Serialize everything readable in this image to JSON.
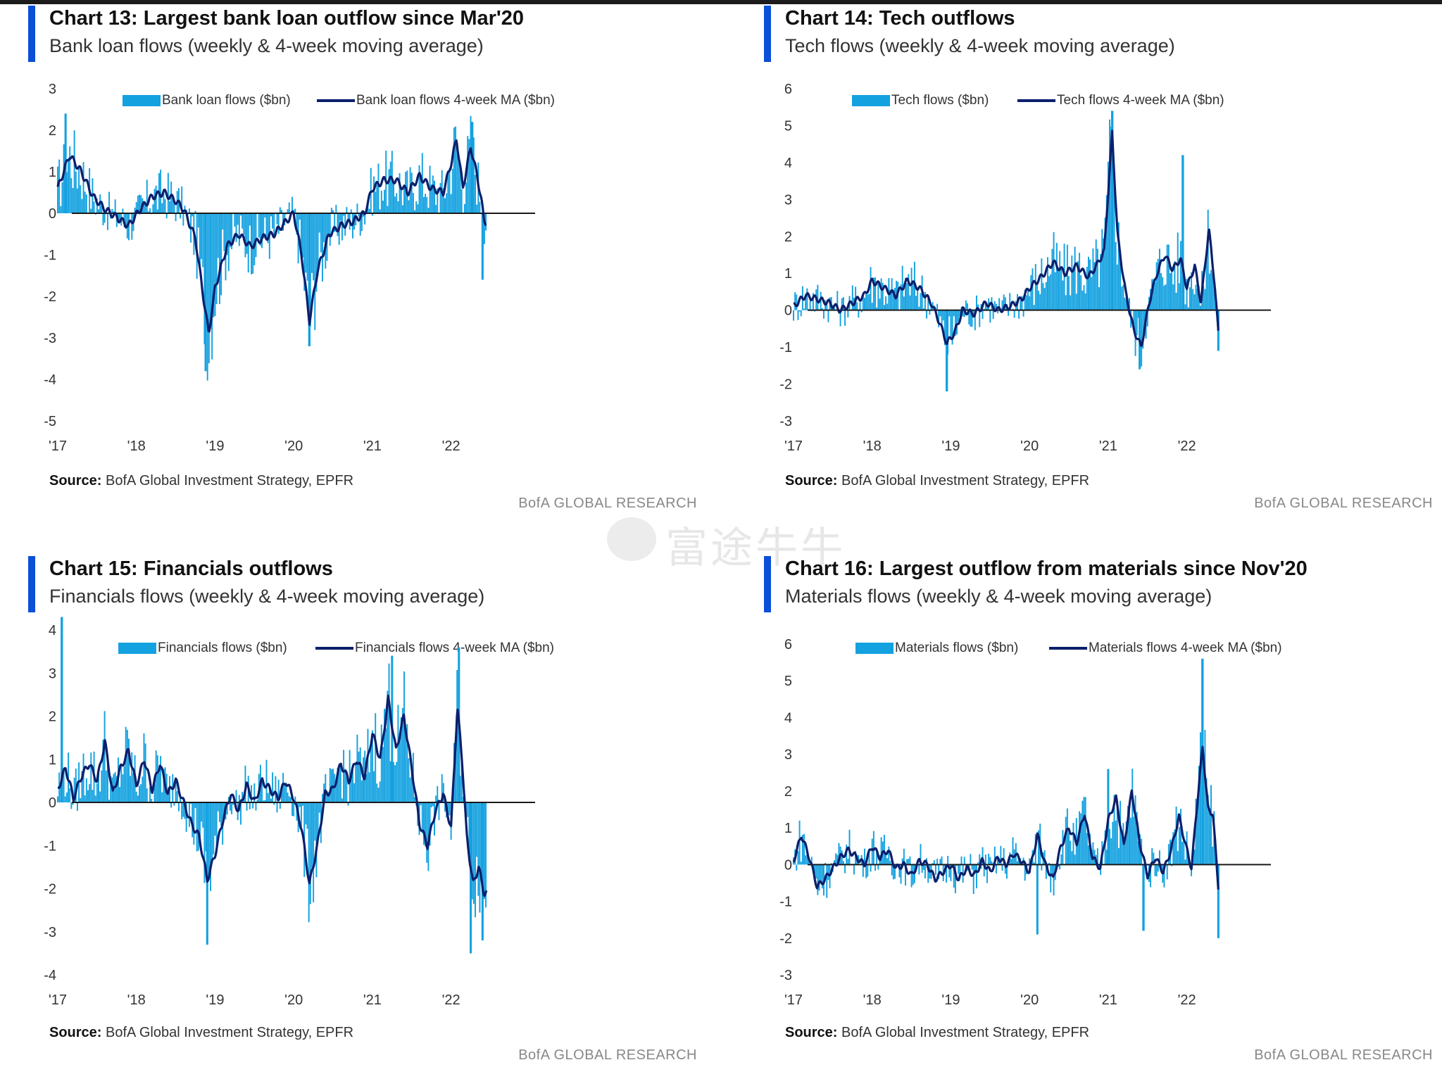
{
  "colors": {
    "bar": "#13a1e0",
    "ma": "#0b1f6b",
    "accent": "#0b4fd9",
    "zero": "#1a1a1a"
  },
  "watermark": "富途牛牛",
  "panels": [
    {
      "title": "Chart 13: Largest bank loan outflow since Mar'20",
      "subtitle": "Bank loan flows (weekly & 4-week moving average)",
      "source_label": "Source:",
      "source_text": "BofA Global Investment Strategy, EPFR",
      "brand": "BofA GLOBAL RESEARCH",
      "legend": {
        "bar": "Bank loan flows ($bn)",
        "line": "Bank loan flows 4-week MA ($bn)"
      },
      "chart_data": {
        "type": "bar",
        "x_start": 2017.0,
        "x_end": 2022.45,
        "xticks": [
          "'17",
          "'18",
          "'19",
          "'20",
          "'21",
          "'22"
        ],
        "yticks": [
          "3",
          "2",
          "1",
          "0",
          "-1",
          "-2",
          "-3",
          "-4",
          "-5"
        ],
        "ylim": [
          -5,
          3
        ],
        "ma_points": [
          [
            2017.0,
            0.6
          ],
          [
            2017.15,
            1.4
          ],
          [
            2017.3,
            1.0
          ],
          [
            2017.45,
            0.4
          ],
          [
            2017.6,
            0.1
          ],
          [
            2017.75,
            -0.1
          ],
          [
            2017.9,
            -0.3
          ],
          [
            2018.05,
            0.1
          ],
          [
            2018.2,
            0.4
          ],
          [
            2018.35,
            0.5
          ],
          [
            2018.5,
            0.3
          ],
          [
            2018.6,
            0.1
          ],
          [
            2018.75,
            -0.6
          ],
          [
            2018.85,
            -2.0
          ],
          [
            2018.92,
            -2.9
          ],
          [
            2019.0,
            -1.8
          ],
          [
            2019.15,
            -0.8
          ],
          [
            2019.3,
            -0.5
          ],
          [
            2019.45,
            -0.8
          ],
          [
            2019.6,
            -0.6
          ],
          [
            2019.75,
            -0.5
          ],
          [
            2019.9,
            -0.2
          ],
          [
            2020.0,
            0.0
          ],
          [
            2020.1,
            -1.0
          ],
          [
            2020.2,
            -2.6
          ],
          [
            2020.3,
            -1.4
          ],
          [
            2020.45,
            -0.5
          ],
          [
            2020.6,
            -0.3
          ],
          [
            2020.75,
            -0.2
          ],
          [
            2020.9,
            0.0
          ],
          [
            2021.0,
            0.6
          ],
          [
            2021.15,
            0.8
          ],
          [
            2021.3,
            0.8
          ],
          [
            2021.45,
            0.5
          ],
          [
            2021.6,
            0.9
          ],
          [
            2021.75,
            0.6
          ],
          [
            2021.9,
            0.5
          ],
          [
            2022.0,
            1.2
          ],
          [
            2022.07,
            1.8
          ],
          [
            2022.15,
            0.6
          ],
          [
            2022.25,
            1.6
          ],
          [
            2022.32,
            1.0
          ],
          [
            2022.38,
            0.4
          ],
          [
            2022.42,
            -0.2
          ]
        ],
        "bar_extremes": [
          [
            2017.1,
            2.4
          ],
          [
            2018.88,
            -3.8
          ],
          [
            2020.2,
            -3.2
          ],
          [
            2022.27,
            2.2
          ],
          [
            2022.4,
            -1.6
          ]
        ]
      }
    },
    {
      "title": "Chart 14: Tech outflows",
      "subtitle": "Tech flows (weekly & 4-week moving average)",
      "source_label": "Source:",
      "source_text": "BofA Global Investment Strategy, EPFR",
      "brand": "BofA GLOBAL RESEARCH",
      "legend": {
        "bar": "Tech flows ($bn)",
        "line": "Tech flows 4-week MA ($bn)"
      },
      "chart_data": {
        "type": "bar",
        "x_start": 2017.0,
        "x_end": 2022.4,
        "xticks": [
          "'17",
          "'18",
          "'19",
          "'20",
          "'21",
          "'22"
        ],
        "yticks": [
          "6",
          "5",
          "4",
          "3",
          "2",
          "1",
          "0",
          "-1",
          "-2",
          "-3"
        ],
        "ylim": [
          -3,
          6
        ],
        "ma_points": [
          [
            2017.0,
            0.1
          ],
          [
            2017.15,
            0.4
          ],
          [
            2017.3,
            0.3
          ],
          [
            2017.45,
            0.2
          ],
          [
            2017.6,
            0.0
          ],
          [
            2017.75,
            0.2
          ],
          [
            2017.9,
            0.4
          ],
          [
            2018.0,
            0.8
          ],
          [
            2018.15,
            0.6
          ],
          [
            2018.3,
            0.4
          ],
          [
            2018.45,
            0.8
          ],
          [
            2018.6,
            0.6
          ],
          [
            2018.75,
            0.2
          ],
          [
            2018.85,
            -0.3
          ],
          [
            2018.95,
            -0.9
          ],
          [
            2019.05,
            -0.6
          ],
          [
            2019.15,
            0.0
          ],
          [
            2019.3,
            -0.1
          ],
          [
            2019.45,
            0.2
          ],
          [
            2019.6,
            0.0
          ],
          [
            2019.75,
            0.1
          ],
          [
            2019.9,
            0.3
          ],
          [
            2020.0,
            0.6
          ],
          [
            2020.15,
            0.9
          ],
          [
            2020.3,
            1.3
          ],
          [
            2020.45,
            1.0
          ],
          [
            2020.6,
            1.2
          ],
          [
            2020.75,
            0.9
          ],
          [
            2020.85,
            1.2
          ],
          [
            2020.95,
            1.6
          ],
          [
            2021.05,
            4.8
          ],
          [
            2021.12,
            2.0
          ],
          [
            2021.22,
            0.5
          ],
          [
            2021.32,
            -0.5
          ],
          [
            2021.42,
            -1.0
          ],
          [
            2021.52,
            0.2
          ],
          [
            2021.62,
            1.0
          ],
          [
            2021.72,
            1.5
          ],
          [
            2021.82,
            1.1
          ],
          [
            2021.92,
            1.4
          ],
          [
            2022.0,
            0.6
          ],
          [
            2022.1,
            1.2
          ],
          [
            2022.18,
            0.2
          ],
          [
            2022.28,
            2.2
          ],
          [
            2022.35,
            0.8
          ],
          [
            2022.4,
            -0.6
          ]
        ],
        "bar_extremes": [
          [
            2021.05,
            5.4
          ],
          [
            2021.95,
            4.2
          ],
          [
            2018.95,
            -2.2
          ],
          [
            2021.4,
            -1.6
          ],
          [
            2022.4,
            -1.1
          ]
        ]
      }
    },
    {
      "title": "Chart 15: Financials outflows",
      "subtitle": "Financials flows (weekly & 4-week moving average)",
      "source_label": "Source:",
      "source_text": "BofA Global Investment Strategy, EPFR",
      "brand": "BofA GLOBAL RESEARCH",
      "legend": {
        "bar": "Financials flows ($bn)",
        "line": "Financials flows 4-week MA ($bn)"
      },
      "chart_data": {
        "type": "bar",
        "x_start": 2017.0,
        "x_end": 2022.45,
        "xticks": [
          "'17",
          "'18",
          "'19",
          "'20",
          "'21",
          "'22"
        ],
        "yticks": [
          "4",
          "3",
          "2",
          "1",
          "0",
          "-1",
          "-2",
          "-3",
          "-4"
        ],
        "ylim": [
          -4,
          4
        ],
        "ma_points": [
          [
            2017.0,
            0.3
          ],
          [
            2017.1,
            0.8
          ],
          [
            2017.2,
            0.1
          ],
          [
            2017.3,
            0.6
          ],
          [
            2017.4,
            0.9
          ],
          [
            2017.5,
            0.5
          ],
          [
            2017.6,
            1.4
          ],
          [
            2017.7,
            0.2
          ],
          [
            2017.8,
            0.8
          ],
          [
            2017.9,
            1.2
          ],
          [
            2018.0,
            0.4
          ],
          [
            2018.1,
            1.0
          ],
          [
            2018.2,
            0.3
          ],
          [
            2018.3,
            0.9
          ],
          [
            2018.4,
            0.2
          ],
          [
            2018.5,
            0.5
          ],
          [
            2018.6,
            0.0
          ],
          [
            2018.7,
            -0.5
          ],
          [
            2018.8,
            -0.8
          ],
          [
            2018.9,
            -1.8
          ],
          [
            2019.0,
            -1.2
          ],
          [
            2019.1,
            -0.4
          ],
          [
            2019.2,
            0.2
          ],
          [
            2019.3,
            -0.2
          ],
          [
            2019.4,
            0.4
          ],
          [
            2019.5,
            0.0
          ],
          [
            2019.6,
            0.5
          ],
          [
            2019.7,
            0.3
          ],
          [
            2019.8,
            0.1
          ],
          [
            2019.9,
            0.5
          ],
          [
            2020.0,
            0.1
          ],
          [
            2020.1,
            -0.6
          ],
          [
            2020.2,
            -1.9
          ],
          [
            2020.3,
            -1.0
          ],
          [
            2020.4,
            0.2
          ],
          [
            2020.5,
            0.3
          ],
          [
            2020.6,
            0.9
          ],
          [
            2020.7,
            0.5
          ],
          [
            2020.8,
            1.0
          ],
          [
            2020.9,
            0.6
          ],
          [
            2021.0,
            1.6
          ],
          [
            2021.1,
            1.0
          ],
          [
            2021.2,
            2.4
          ],
          [
            2021.3,
            1.2
          ],
          [
            2021.4,
            2.0
          ],
          [
            2021.5,
            0.8
          ],
          [
            2021.6,
            -0.5
          ],
          [
            2021.7,
            -1.0
          ],
          [
            2021.8,
            -0.2
          ],
          [
            2021.9,
            0.2
          ],
          [
            2022.0,
            -0.6
          ],
          [
            2022.08,
            2.2
          ],
          [
            2022.14,
            1.0
          ],
          [
            2022.2,
            -0.8
          ],
          [
            2022.28,
            -1.9
          ],
          [
            2022.35,
            -1.5
          ],
          [
            2022.42,
            -2.1
          ]
        ],
        "bar_extremes": [
          [
            2017.05,
            4.3
          ],
          [
            2021.25,
            3.4
          ],
          [
            2022.1,
            3.6
          ],
          [
            2018.9,
            -3.3
          ],
          [
            2022.25,
            -3.5
          ],
          [
            2022.4,
            -3.2
          ]
        ]
      }
    },
    {
      "title": "Chart 16: Largest outflow from materials since Nov'20",
      "subtitle": "Materials flows (weekly & 4-week moving average)",
      "source_label": "Source:",
      "source_text": "BofA Global Investment Strategy, EPFR",
      "brand": "BofA GLOBAL RESEARCH",
      "legend": {
        "bar": "Materials flows ($bn)",
        "line": "Materials flows 4-week MA ($bn)"
      },
      "chart_data": {
        "type": "bar",
        "x_start": 2017.0,
        "x_end": 2022.4,
        "xticks": [
          "'17",
          "'18",
          "'19",
          "'20",
          "'21",
          "'22"
        ],
        "yticks": [
          "6",
          "5",
          "4",
          "3",
          "2",
          "1",
          "0",
          "-1",
          "-2",
          "-3"
        ],
        "ylim": [
          -3,
          6
        ],
        "ma_points": [
          [
            2017.0,
            0.1
          ],
          [
            2017.1,
            0.8
          ],
          [
            2017.2,
            0.2
          ],
          [
            2017.3,
            -0.6
          ],
          [
            2017.4,
            -0.4
          ],
          [
            2017.5,
            -0.1
          ],
          [
            2017.6,
            0.2
          ],
          [
            2017.7,
            0.4
          ],
          [
            2017.8,
            0.2
          ],
          [
            2017.9,
            0.0
          ],
          [
            2018.0,
            0.5
          ],
          [
            2018.1,
            0.2
          ],
          [
            2018.2,
            0.4
          ],
          [
            2018.3,
            -0.1
          ],
          [
            2018.4,
            0.0
          ],
          [
            2018.5,
            -0.3
          ],
          [
            2018.6,
            0.1
          ],
          [
            2018.7,
            0.0
          ],
          [
            2018.8,
            -0.4
          ],
          [
            2018.9,
            -0.2
          ],
          [
            2019.0,
            0.0
          ],
          [
            2019.1,
            -0.4
          ],
          [
            2019.2,
            -0.1
          ],
          [
            2019.3,
            -0.3
          ],
          [
            2019.4,
            0.1
          ],
          [
            2019.5,
            -0.2
          ],
          [
            2019.6,
            0.2
          ],
          [
            2019.7,
            0.0
          ],
          [
            2019.8,
            0.3
          ],
          [
            2019.9,
            0.1
          ],
          [
            2020.0,
            -0.2
          ],
          [
            2020.1,
            0.8
          ],
          [
            2020.2,
            0.0
          ],
          [
            2020.3,
            -0.4
          ],
          [
            2020.4,
            0.5
          ],
          [
            2020.5,
            1.0
          ],
          [
            2020.6,
            0.6
          ],
          [
            2020.7,
            1.4
          ],
          [
            2020.8,
            0.2
          ],
          [
            2020.9,
            -0.1
          ],
          [
            2021.0,
            1.2
          ],
          [
            2021.1,
            1.8
          ],
          [
            2021.2,
            0.5
          ],
          [
            2021.3,
            2.0
          ],
          [
            2021.4,
            0.6
          ],
          [
            2021.5,
            -0.3
          ],
          [
            2021.6,
            0.2
          ],
          [
            2021.7,
            -0.2
          ],
          [
            2021.8,
            0.4
          ],
          [
            2021.9,
            1.3
          ],
          [
            2022.0,
            0.4
          ],
          [
            2022.06,
            -0.1
          ],
          [
            2022.12,
            1.4
          ],
          [
            2022.2,
            3.2
          ],
          [
            2022.27,
            1.5
          ],
          [
            2022.33,
            1.4
          ],
          [
            2022.4,
            -0.6
          ]
        ],
        "bar_extremes": [
          [
            2022.2,
            5.6
          ],
          [
            2021.0,
            2.6
          ],
          [
            2022.4,
            -2.0
          ],
          [
            2020.1,
            -1.9
          ],
          [
            2021.45,
            -1.8
          ]
        ]
      }
    }
  ]
}
